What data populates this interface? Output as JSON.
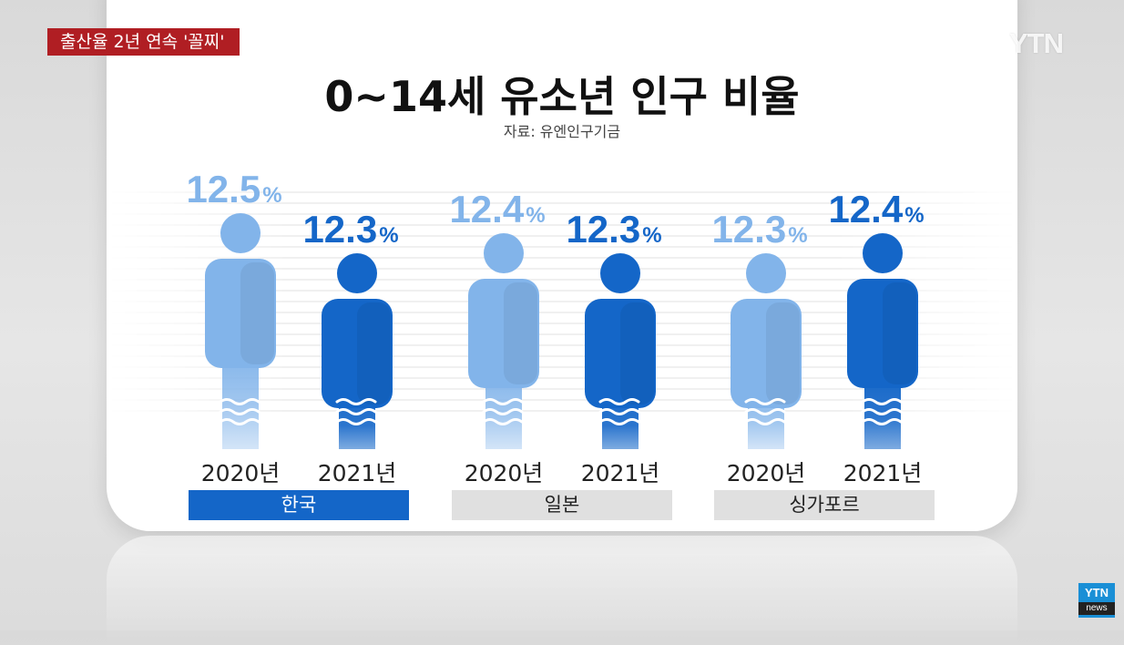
{
  "broadcast": {
    "headline": "출산율 2년 연속 '꼴찌'",
    "logo": "YTN",
    "badge_top": "YTN",
    "badge_bottom": "news"
  },
  "colors": {
    "light_figure": "#82b4ea",
    "dark_figure": "#1466c8",
    "highlight_bar": "#1466c8",
    "neutral_bar": "#e0e0e0",
    "headline_bg": "#b01e23"
  },
  "chart_data": {
    "type": "bar",
    "title": "0~14세 유소년 인구 비율",
    "source": "자료: 유엔인구기금",
    "categories": [
      "한국",
      "일본",
      "싱가포르"
    ],
    "highlighted_category": "한국",
    "unit": "%",
    "series": [
      {
        "name": "2020년",
        "values": [
          12.5,
          12.4,
          12.3
        ]
      },
      {
        "name": "2021년",
        "values": [
          12.3,
          12.3,
          12.4
        ]
      }
    ],
    "value_labels": [
      [
        "12.5",
        "12.3"
      ],
      [
        "12.4",
        "12.3"
      ],
      [
        "12.3",
        "12.4"
      ]
    ]
  }
}
